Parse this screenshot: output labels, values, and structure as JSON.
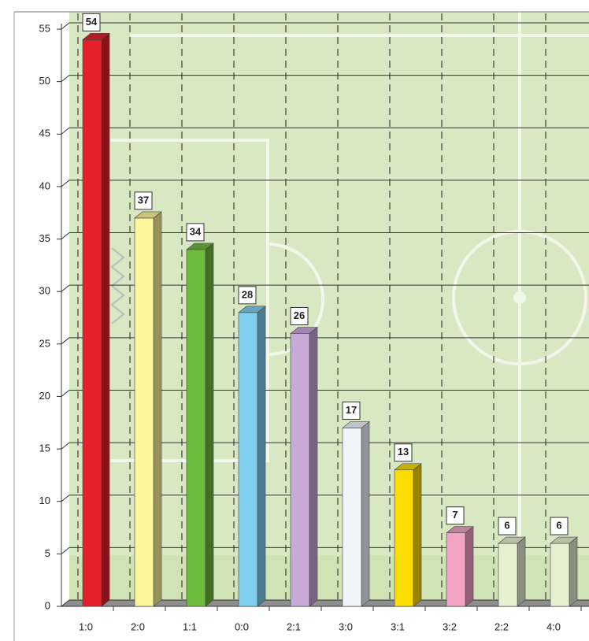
{
  "chart_data": {
    "type": "bar",
    "categories": [
      "1:0",
      "2:0",
      "1:1",
      "0:0",
      "2:1",
      "3:0",
      "3:1",
      "3:2",
      "2:2",
      "4:0"
    ],
    "values": [
      54,
      37,
      34,
      28,
      26,
      17,
      13,
      7,
      6,
      6
    ],
    "colors": [
      "#e4202a",
      "#fdf59a",
      "#6cbb3c",
      "#7fd0ef",
      "#c9a9d8",
      "#eef6fc",
      "#fbdc00",
      "#f2a3c6",
      "#e6efd0",
      "#e6efd0"
    ],
    "ylim": [
      0,
      55
    ],
    "yticks": [
      0,
      5,
      10,
      15,
      20,
      25,
      30,
      35,
      40,
      45,
      50,
      55
    ],
    "grid": true
  }
}
